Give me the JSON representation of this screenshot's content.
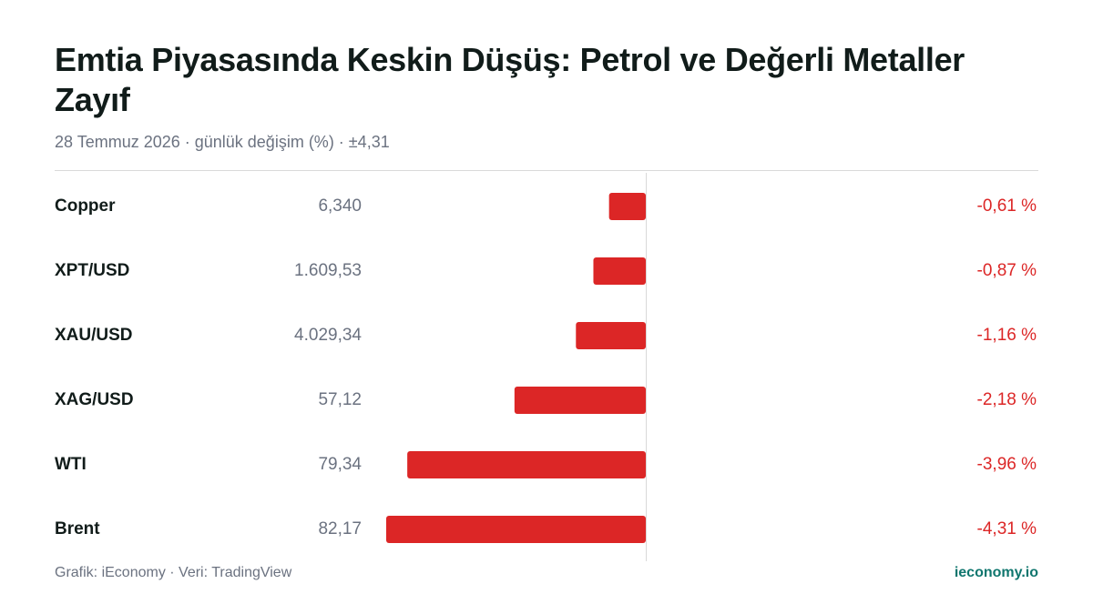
{
  "chart_data": {
    "type": "bar",
    "orientation": "horizontal",
    "title": "Emtia Piyasasında Keskin Düşüş: Petrol ve Değerli Metaller Zayıf",
    "subtitle": "28 Temmuz 2026 · günlük değişim (%) · ±4,31",
    "categories": [
      "Copper",
      "XPT/USD",
      "XAU/USD",
      "XAG/USD",
      "WTI",
      "Brent"
    ],
    "prices": [
      "6,340",
      "1.609,53",
      "4.029,34",
      "57,12",
      "79,34",
      "82,17"
    ],
    "values": [
      -0.61,
      -0.87,
      -1.16,
      -2.18,
      -3.96,
      -4.31
    ],
    "value_labels": [
      "-0,61 %",
      "-0,87 %",
      "-1,16 %",
      "-2,18 %",
      "-3,96 %",
      "-4,31 %"
    ],
    "color": "#dc2626",
    "xlim": [
      -4.31,
      4.31
    ],
    "source": "Grafik: iEconomy · Veri: TradingView",
    "brand": "ieconomy.io"
  }
}
